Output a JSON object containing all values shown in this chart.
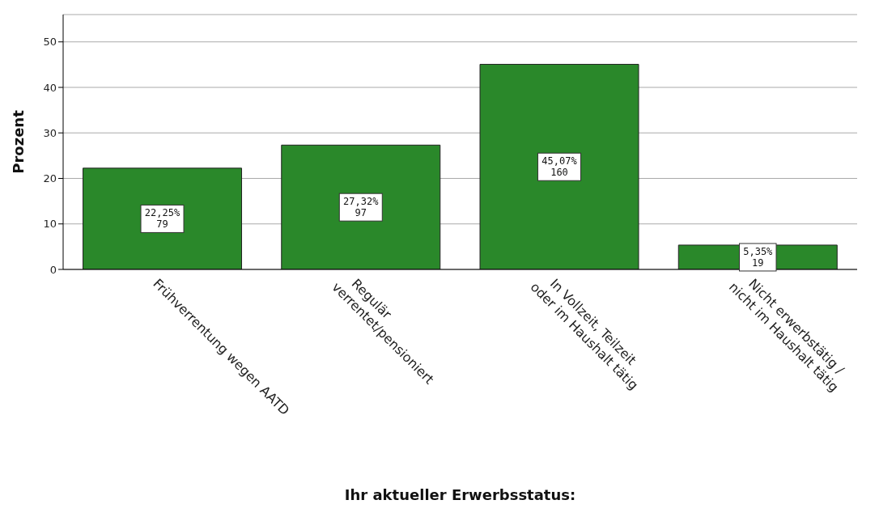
{
  "chart_data": {
    "type": "bar",
    "xlabel": "Ihr aktueller Erwerbsstatus:",
    "ylabel": "Prozent",
    "categories": [
      "Frühverrentung wegen AATD",
      "Regulär verrentet/pensioniert",
      "In Vollzeit, Teilzeit oder im Haushalt tätig",
      "Nicht erwerbstätig / nicht im Haushalt tätig"
    ],
    "values": [
      22.25,
      27.32,
      45.07,
      5.35
    ],
    "value_labels": [
      "22,25%\n79",
      "27,32%\n97",
      "45,07%\n160",
      "5,35%\n19"
    ],
    "color": "#2a882a",
    "ylim": [
      0,
      56
    ],
    "yticks": [
      0,
      10,
      20,
      30,
      40,
      50
    ],
    "grid": "y",
    "legend": false
  }
}
